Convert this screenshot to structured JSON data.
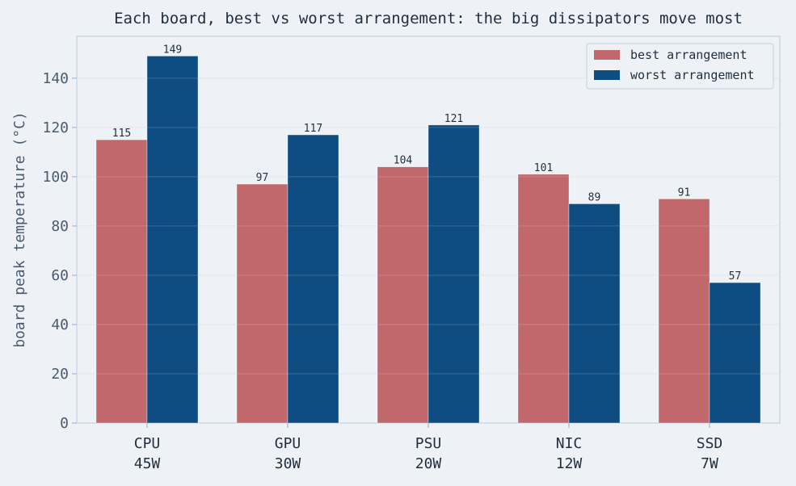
{
  "chart_data": {
    "type": "bar",
    "title": "Each board, best vs worst arrangement: the big dissipators move most",
    "ylabel": "board peak temperature (°C)",
    "xlabel": "",
    "categories": [
      [
        "CPU",
        "45W"
      ],
      [
        "GPU",
        "30W"
      ],
      [
        "PSU",
        "20W"
      ],
      [
        "NIC",
        "12W"
      ],
      [
        "SSD",
        "7W"
      ]
    ],
    "series": [
      {
        "name": "best arrangement",
        "color": "#c0686b",
        "values": [
          115,
          97,
          104,
          101,
          91
        ]
      },
      {
        "name": "worst arrangement",
        "color": "#0f4c81",
        "values": [
          149,
          117,
          121,
          89,
          57
        ]
      }
    ],
    "ylim": [
      0,
      157
    ],
    "yticks": [
      0,
      20,
      40,
      60,
      80,
      100,
      120,
      140
    ],
    "grid": true,
    "legend_position": "top-right"
  }
}
